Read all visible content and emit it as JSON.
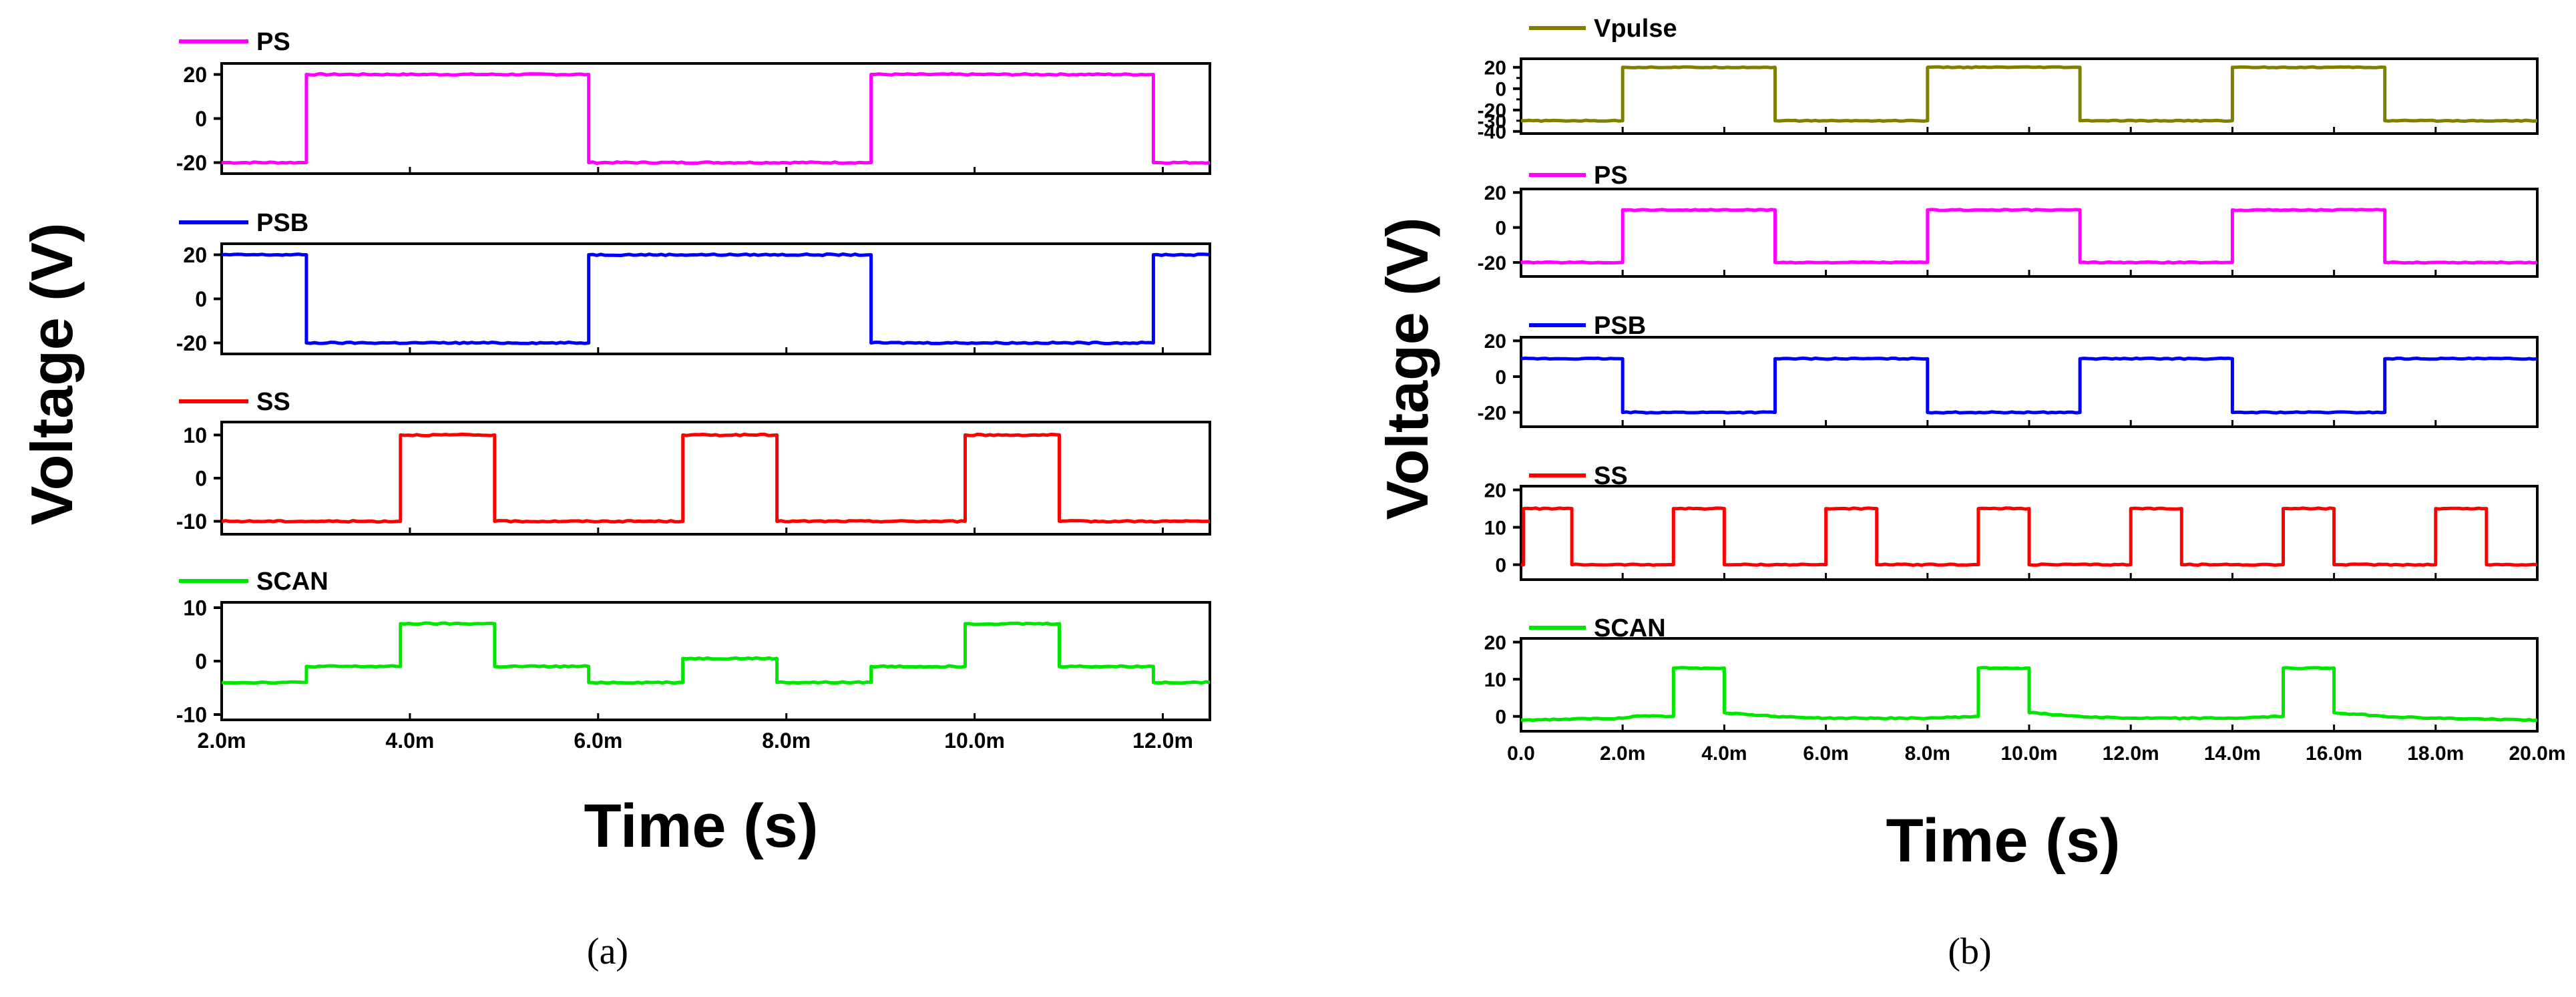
{
  "chart_data": [
    {
      "type": "line",
      "panel_label": "(a)",
      "xlabel": "Time (s)",
      "ylabel": "Voltage (V)",
      "xlim": [
        2.0,
        12.5
      ],
      "xticks": [
        2,
        4,
        6,
        8,
        10,
        12
      ],
      "xtick_labels": [
        "2.0m",
        "4.0m",
        "6.0m",
        "8.0m",
        "10.0m",
        "12.0m"
      ],
      "x_units": "ms",
      "series": [
        {
          "name": "PS",
          "color": "#ff00ff",
          "ylim": [
            -25,
            25
          ],
          "yticks": [
            20,
            0,
            -20
          ],
          "ytick_labels": [
            "20",
            "0",
            "-20"
          ],
          "points": [
            [
              2.0,
              -20
            ],
            [
              2.9,
              -20
            ],
            [
              2.9,
              20
            ],
            [
              5.9,
              20
            ],
            [
              5.9,
              -20
            ],
            [
              8.9,
              -20
            ],
            [
              8.9,
              20
            ],
            [
              11.9,
              20
            ],
            [
              11.9,
              -20
            ],
            [
              12.5,
              -20
            ]
          ]
        },
        {
          "name": "PSB",
          "color": "#0000ff",
          "ylim": [
            -25,
            25
          ],
          "yticks": [
            20,
            0,
            -20
          ],
          "ytick_labels": [
            "20",
            "0",
            "-20"
          ],
          "points": [
            [
              2.0,
              20
            ],
            [
              2.9,
              20
            ],
            [
              2.9,
              -20
            ],
            [
              5.9,
              -20
            ],
            [
              5.9,
              20
            ],
            [
              8.9,
              20
            ],
            [
              8.9,
              -20
            ],
            [
              11.9,
              -20
            ],
            [
              11.9,
              20
            ],
            [
              12.5,
              20
            ]
          ]
        },
        {
          "name": "SS",
          "color": "#ff0000",
          "ylim": [
            -13,
            13
          ],
          "yticks": [
            10,
            0,
            -10
          ],
          "ytick_labels": [
            "10",
            "0",
            "-10"
          ],
          "points": [
            [
              2.0,
              -10
            ],
            [
              3.9,
              -10
            ],
            [
              3.9,
              10
            ],
            [
              4.9,
              10
            ],
            [
              4.9,
              -10
            ],
            [
              6.9,
              -10
            ],
            [
              6.9,
              10
            ],
            [
              7.9,
              10
            ],
            [
              7.9,
              -10
            ],
            [
              9.9,
              -10
            ],
            [
              9.9,
              10
            ],
            [
              10.9,
              10
            ],
            [
              10.9,
              -10
            ],
            [
              12.5,
              -10
            ]
          ]
        },
        {
          "name": "SCAN",
          "color": "#00e600",
          "ylim": [
            -11,
            11
          ],
          "yticks": [
            10,
            0,
            -10
          ],
          "ytick_labels": [
            "10",
            "0",
            "-10"
          ],
          "points": [
            [
              2.0,
              -4
            ],
            [
              2.9,
              -4
            ],
            [
              2.9,
              -1
            ],
            [
              3.9,
              -1
            ],
            [
              3.9,
              7
            ],
            [
              4.9,
              7
            ],
            [
              4.9,
              -1
            ],
            [
              5.9,
              -1
            ],
            [
              5.9,
              -4
            ],
            [
              6.9,
              -4
            ],
            [
              6.9,
              0.5
            ],
            [
              7.9,
              0.5
            ],
            [
              7.9,
              -4
            ],
            [
              8.9,
              -4
            ],
            [
              8.9,
              -1
            ],
            [
              9.9,
              -1
            ],
            [
              9.9,
              7
            ],
            [
              10.9,
              7
            ],
            [
              10.9,
              -1
            ],
            [
              11.9,
              -1
            ],
            [
              11.9,
              -4
            ],
            [
              12.5,
              -4
            ]
          ]
        }
      ]
    },
    {
      "type": "line",
      "panel_label": "(b)",
      "xlabel": "Time (s)",
      "ylabel": "Voltage (V)",
      "xlim": [
        0,
        20
      ],
      "xticks": [
        0,
        2,
        4,
        6,
        8,
        10,
        12,
        14,
        16,
        18,
        20
      ],
      "xtick_labels": [
        "0.0",
        "2.0m",
        "4.0m",
        "6.0m",
        "8.0m",
        "10.0m",
        "12.0m",
        "14.0m",
        "16.0m",
        "18.0m",
        "20.0m"
      ],
      "x_units": "ms",
      "series": [
        {
          "name": "Vpulse",
          "color": "#808000",
          "ylim": [
            -42,
            28
          ],
          "yticks": [
            20,
            0,
            -20,
            -40
          ],
          "ytick_labels": [
            "20",
            "0",
            "-20",
            "-40"
          ],
          "extra_ticks": [
            10,
            -10,
            -30
          ],
          "extra_tick_labels": [
            "",
            "",
            "-30"
          ],
          "points": [
            [
              0,
              -30
            ],
            [
              2,
              -30
            ],
            [
              2,
              20
            ],
            [
              5,
              20
            ],
            [
              5,
              -30
            ],
            [
              8,
              -30
            ],
            [
              8,
              20
            ],
            [
              11,
              20
            ],
            [
              11,
              -30
            ],
            [
              14,
              -30
            ],
            [
              14,
              20
            ],
            [
              17,
              20
            ],
            [
              17,
              -30
            ],
            [
              20,
              -30
            ]
          ]
        },
        {
          "name": "PS",
          "color": "#ff00ff",
          "ylim": [
            -28,
            22
          ],
          "yticks": [
            20,
            0,
            -20
          ],
          "ytick_labels": [
            "20",
            "0",
            "-20"
          ],
          "points": [
            [
              0,
              -20
            ],
            [
              2,
              -20
            ],
            [
              2,
              10
            ],
            [
              5,
              10
            ],
            [
              5,
              -20
            ],
            [
              8,
              -20
            ],
            [
              8,
              10
            ],
            [
              11,
              10
            ],
            [
              11,
              -20
            ],
            [
              14,
              -20
            ],
            [
              14,
              10
            ],
            [
              17,
              10
            ],
            [
              17,
              -20
            ],
            [
              20,
              -20
            ]
          ]
        },
        {
          "name": "PSB",
          "color": "#0000ff",
          "ylim": [
            -28,
            22
          ],
          "yticks": [
            20,
            0,
            -20
          ],
          "ytick_labels": [
            "20",
            "0",
            "-20"
          ],
          "points": [
            [
              0,
              10
            ],
            [
              2,
              10
            ],
            [
              2,
              -20
            ],
            [
              5,
              -20
            ],
            [
              5,
              10
            ],
            [
              8,
              10
            ],
            [
              8,
              -20
            ],
            [
              11,
              -20
            ],
            [
              11,
              10
            ],
            [
              14,
              10
            ],
            [
              14,
              -20
            ],
            [
              17,
              -20
            ],
            [
              17,
              10
            ],
            [
              20,
              10
            ]
          ]
        },
        {
          "name": "SS",
          "color": "#ff0000",
          "ylim": [
            -4,
            21
          ],
          "yticks": [
            20,
            10,
            0
          ],
          "ytick_labels": [
            "20",
            "10",
            "0"
          ],
          "points": [
            [
              0,
              0
            ],
            [
              0.05,
              0
            ],
            [
              0.05,
              15
            ],
            [
              1,
              15
            ],
            [
              1,
              0
            ],
            [
              3,
              0
            ],
            [
              3,
              15
            ],
            [
              4,
              15
            ],
            [
              4,
              0
            ],
            [
              6,
              0
            ],
            [
              6,
              15
            ],
            [
              7,
              15
            ],
            [
              7,
              0
            ],
            [
              9,
              0
            ],
            [
              9,
              15
            ],
            [
              10,
              15
            ],
            [
              10,
              0
            ],
            [
              12,
              0
            ],
            [
              12,
              15
            ],
            [
              13,
              15
            ],
            [
              13,
              0
            ],
            [
              15,
              0
            ],
            [
              15,
              15
            ],
            [
              16,
              15
            ],
            [
              16,
              0
            ],
            [
              18,
              0
            ],
            [
              18,
              15
            ],
            [
              19,
              15
            ],
            [
              19,
              0
            ],
            [
              20,
              0
            ]
          ]
        },
        {
          "name": "SCAN",
          "color": "#00e600",
          "ylim": [
            -4,
            21
          ],
          "yticks": [
            20,
            10,
            0
          ],
          "ytick_labels": [
            "20",
            "10",
            "0"
          ],
          "points": [
            [
              0,
              -1
            ],
            [
              2,
              -0.5
            ],
            [
              2.2,
              0
            ],
            [
              3,
              0
            ],
            [
              3,
              13
            ],
            [
              4,
              13
            ],
            [
              4,
              1
            ],
            [
              5,
              0
            ],
            [
              6,
              -0.5
            ],
            [
              8,
              -0.5
            ],
            [
              9,
              0
            ],
            [
              9,
              13
            ],
            [
              10,
              13
            ],
            [
              10,
              1
            ],
            [
              11,
              0
            ],
            [
              12,
              -0.5
            ],
            [
              14,
              -0.5
            ],
            [
              15,
              0
            ],
            [
              15,
              13
            ],
            [
              16,
              13
            ],
            [
              16,
              1
            ],
            [
              17,
              0
            ],
            [
              18,
              -0.5
            ],
            [
              20,
              -1
            ]
          ]
        }
      ]
    }
  ]
}
